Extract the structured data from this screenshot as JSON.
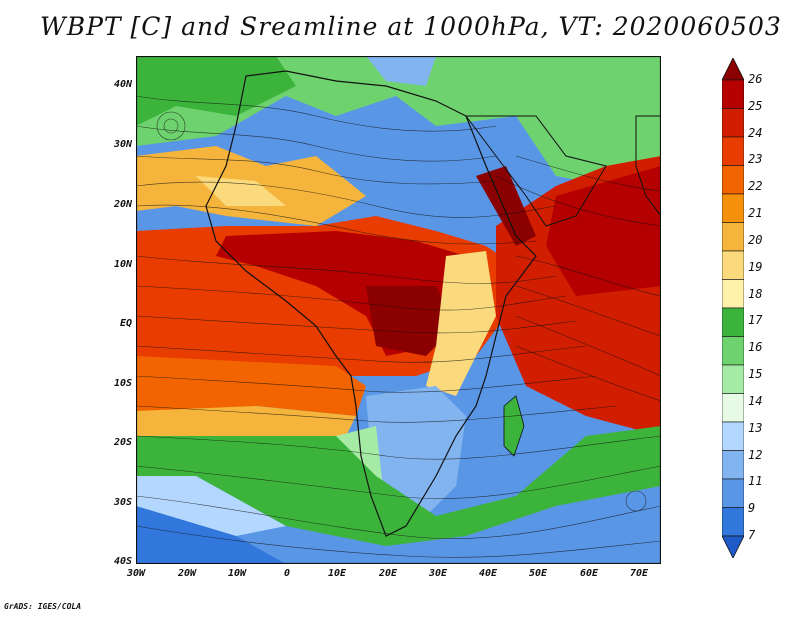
{
  "title": "WBPT [C] and Sreamline at 1000hPa, VT: 2020060503",
  "credit": "GrADS: IGES/COLA",
  "map": {
    "lat_labels": [
      "40N",
      "30N",
      "20N",
      "10N",
      "EQ",
      "10S",
      "20S",
      "30S",
      "40S"
    ],
    "lon_labels": [
      "30W",
      "20W",
      "10W",
      "0",
      "10E",
      "20E",
      "30E",
      "40E",
      "50E",
      "60E",
      "70E"
    ]
  },
  "colorbar": {
    "levels": [
      "26",
      "25",
      "24",
      "23",
      "22",
      "21",
      "20",
      "19",
      "18",
      "17",
      "16",
      "15",
      "14",
      "13",
      "12",
      "11",
      "9",
      "7"
    ],
    "colors": [
      "#8b0000",
      "#b40000",
      "#d21e00",
      "#e83c00",
      "#f26400",
      "#f5900a",
      "#f5b43c",
      "#fada7d",
      "#fff0aa",
      "#3cb43c",
      "#6ed26e",
      "#a5eba5",
      "#e6fae6",
      "#b4d7ff",
      "#82b4f0",
      "#5a96e6",
      "#3278dc",
      "#1e5ac8"
    ]
  },
  "field": {
    "name": "WBPT",
    "units": "C",
    "level": "1000hPa",
    "valid_time": "2020060503"
  }
}
